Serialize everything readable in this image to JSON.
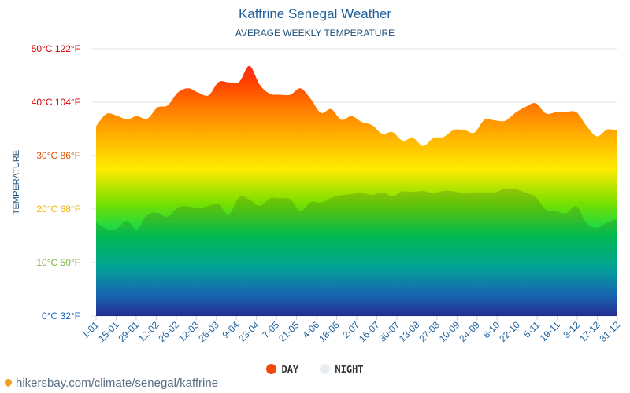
{
  "chart_data": {
    "type": "area",
    "title": "Kaffrine Senegal Weather",
    "subtitle": "AVERAGE WEEKLY TEMPERATURE",
    "ylabel": "TEMPERATURE",
    "xlabel": "",
    "ylim": [
      0,
      50
    ],
    "y_ticks": [
      {
        "value": 0,
        "label": "0°C 32°F",
        "color": "#1565c0"
      },
      {
        "value": 10,
        "label": "10°C 50°F",
        "color": "#7cb342"
      },
      {
        "value": 20,
        "label": "20°C 68°F",
        "color": "#f5b300"
      },
      {
        "value": 30,
        "label": "30°C 86°F",
        "color": "#e65100"
      },
      {
        "value": 40,
        "label": "40°C 104°F",
        "color": "#d50000"
      },
      {
        "value": 50,
        "label": "50°C 122°F",
        "color": "#d50000"
      }
    ],
    "x_tick_labels": [
      "1-01",
      "15-01",
      "29-01",
      "12-02",
      "26-02",
      "12-03",
      "26-03",
      "9-04",
      "23-04",
      "7-05",
      "21-05",
      "4-06",
      "18-06",
      "2-07",
      "16-07",
      "30-07",
      "13-08",
      "27-08",
      "10-09",
      "24-09",
      "8-10",
      "22-10",
      "5-11",
      "19-11",
      "3-12",
      "17-12",
      "31-12"
    ],
    "series": [
      {
        "name": "DAY",
        "color": "#f24a0b",
        "values": [
          35.5,
          37.8,
          37.5,
          36.8,
          37.4,
          36.9,
          39.0,
          39.4,
          41.8,
          42.6,
          41.8,
          41.3,
          43.8,
          43.7,
          43.8,
          46.8,
          43.3,
          41.6,
          41.4,
          41.4,
          42.6,
          40.6,
          38.0,
          38.7,
          36.7,
          37.4,
          36.3,
          35.7,
          34.1,
          34.4,
          32.8,
          33.3,
          31.8,
          33.3,
          33.5,
          34.8,
          34.8,
          34.3,
          36.7,
          36.6,
          36.5,
          38.0,
          39.1,
          39.8,
          37.9,
          38.1,
          38.2,
          38.1,
          35.5,
          33.6,
          34.9,
          34.7
        ]
      },
      {
        "name": "NIGHT",
        "color": "#e8edf2",
        "values": [
          17.5,
          16.3,
          16.3,
          17.8,
          16.2,
          18.9,
          19.3,
          18.5,
          20.3,
          20.5,
          20.1,
          20.6,
          20.9,
          19.0,
          22.2,
          21.8,
          20.6,
          22.0,
          22.0,
          21.8,
          19.6,
          21.3,
          21.2,
          22.1,
          22.6,
          22.8,
          23.0,
          22.6,
          23.1,
          22.4,
          23.3,
          23.2,
          23.4,
          22.9,
          23.4,
          23.3,
          22.9,
          23.1,
          23.1,
          23.1,
          23.8,
          23.7,
          23.1,
          22.2,
          19.9,
          19.6,
          19.2,
          20.5,
          17.3,
          16.5,
          17.5,
          18.2
        ]
      }
    ]
  },
  "legend": {
    "day_label": "DAY",
    "night_label": "NIGHT"
  },
  "source": {
    "text": "hikersbay.com/climate/senegal/kaffrine"
  }
}
